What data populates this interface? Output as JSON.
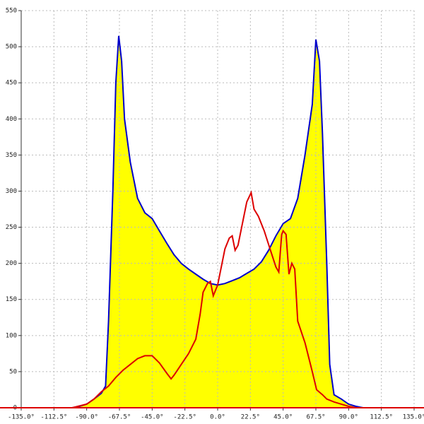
{
  "chart_data": {
    "type": "area-line",
    "xlim": [
      -135,
      135
    ],
    "xticks": [
      {
        "value": -135,
        "label": "-135.0°"
      },
      {
        "value": -112.5,
        "label": "-112.5°"
      },
      {
        "value": -90,
        "label": "-90.0°"
      },
      {
        "value": -67.5,
        "label": "-67.5°"
      },
      {
        "value": -45,
        "label": "-45.0°"
      },
      {
        "value": -22.5,
        "label": "-22.5°"
      },
      {
        "value": 0,
        "label": "0.0°"
      },
      {
        "value": 22.5,
        "label": "22.5°"
      },
      {
        "value": 45,
        "label": "45.0°"
      },
      {
        "value": 67.5,
        "label": "67.5°"
      },
      {
        "value": 90,
        "label": "90.0°"
      },
      {
        "value": 112.5,
        "label": "112.5°"
      },
      {
        "value": 135,
        "label": "135.0°"
      }
    ],
    "ylim": [
      0,
      550
    ],
    "yticks": [
      0,
      50,
      100,
      150,
      200,
      250,
      300,
      350,
      400,
      450,
      500,
      550
    ],
    "grid": true,
    "fill_color": "#ffff00",
    "series": [
      {
        "color": "#0000cc",
        "filled": true,
        "x": [
          -100,
          -95,
          -90,
          -85,
          -80,
          -77,
          -75,
          -72,
          -70,
          -68,
          -66,
          -64,
          -60,
          -55,
          -50,
          -45,
          -40,
          -35,
          -30,
          -25,
          -20,
          -15,
          -10,
          -5,
          0,
          5,
          10,
          15,
          20,
          25,
          30,
          35,
          40,
          45,
          50,
          55,
          60,
          65,
          67.5,
          70,
          72,
          75,
          77,
          80,
          85,
          90,
          95,
          100
        ],
        "values": [
          0,
          2,
          5,
          12,
          20,
          30,
          120,
          300,
          450,
          515,
          480,
          400,
          340,
          290,
          270,
          262,
          245,
          228,
          212,
          200,
          192,
          185,
          178,
          172,
          170,
          172,
          176,
          180,
          186,
          192,
          202,
          218,
          238,
          255,
          262,
          290,
          350,
          420,
          510,
          480,
          380,
          200,
          60,
          18,
          12,
          5,
          2,
          0
        ]
      },
      {
        "color": "#dd0000",
        "filled": false,
        "x": [
          -100,
          -90,
          -85,
          -80,
          -75,
          -70,
          -65,
          -60,
          -55,
          -50,
          -45,
          -40,
          -35,
          -32,
          -30,
          -25,
          -20,
          -15,
          -12,
          -10,
          -7,
          -5,
          -3,
          0,
          3,
          5,
          8,
          10,
          12,
          14,
          17,
          20,
          23,
          25,
          28,
          32,
          36,
          40,
          42,
          44,
          45,
          47,
          49,
          51,
          53,
          55,
          60,
          65,
          68,
          72,
          75,
          80,
          85,
          90,
          95,
          100
        ],
        "values": [
          0,
          5,
          12,
          22,
          30,
          42,
          52,
          60,
          68,
          72,
          72,
          62,
          48,
          40,
          45,
          60,
          75,
          95,
          130,
          160,
          172,
          175,
          155,
          170,
          200,
          220,
          235,
          238,
          218,
          225,
          255,
          285,
          298,
          275,
          265,
          245,
          220,
          195,
          188,
          240,
          245,
          240,
          185,
          200,
          192,
          120,
          90,
          50,
          25,
          18,
          12,
          8,
          5,
          2,
          0,
          0
        ]
      }
    ]
  }
}
